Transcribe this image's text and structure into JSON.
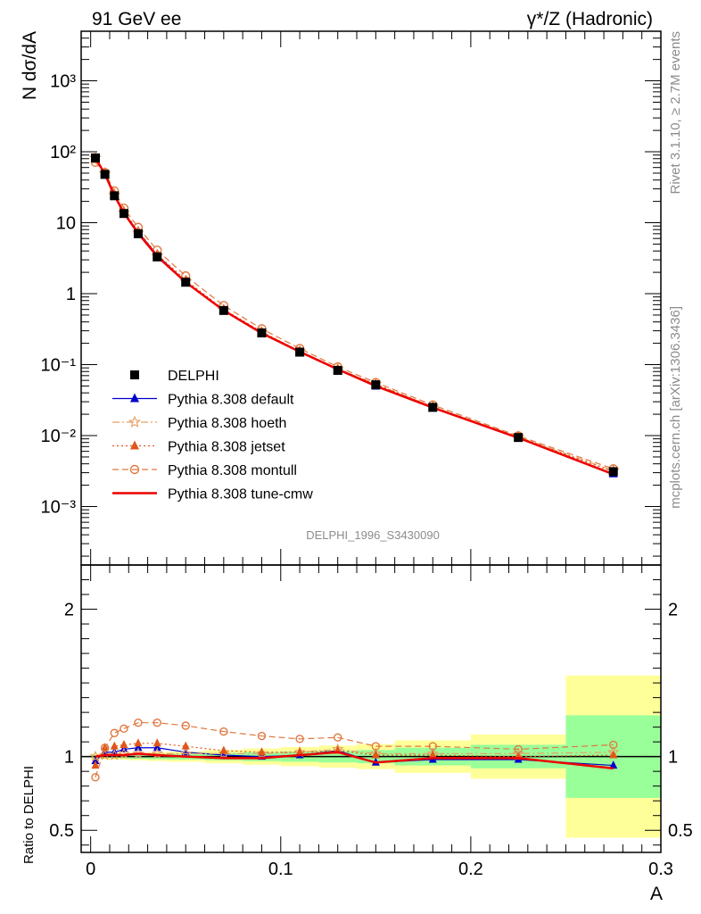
{
  "header": {
    "left": "91 GeV ee",
    "right": "γ*/Z (Hadronic)"
  },
  "side_text": {
    "rivet": "Rivet 3.1.10, ≥ 2.7M events",
    "mcplots": "mcplots.cern.ch [arXiv:1306.3436]"
  },
  "watermark": "DELPHI_1996_S3430090",
  "legend": [
    {
      "label": "DELPHI",
      "color": "#000000",
      "marker": "square",
      "line": "none"
    },
    {
      "label": "Pythia 8.308 default",
      "color": "#0000cc",
      "marker": "triangle",
      "line": "solid"
    },
    {
      "label": "Pythia 8.308 hoeth",
      "color": "#e6a066",
      "marker": "star-open",
      "line": "dashdot"
    },
    {
      "label": "Pythia 8.308 jetset",
      "color": "#e0561a",
      "marker": "triangle",
      "line": "dotted"
    },
    {
      "label": "Pythia 8.308 montull",
      "color": "#e07840",
      "marker": "circle-open",
      "line": "dashed"
    },
    {
      "label": "Pythia 8.308 tune-cmw",
      "color": "#ee0000",
      "marker": "none",
      "line": "solid"
    }
  ],
  "chart_data": [
    {
      "type": "line",
      "panel": "main",
      "ylabel": "N dσ/dA",
      "yscale": "log",
      "ylim": [
        0.00015,
        5000
      ],
      "xlim": [
        -0.005,
        0.3
      ],
      "y_ticks": [
        "10⁻³",
        "10⁻²",
        "10⁻¹",
        "1",
        "10",
        "10²",
        "10³"
      ],
      "x": [
        0.0025,
        0.0075,
        0.0125,
        0.0175,
        0.025,
        0.035,
        0.05,
        0.07,
        0.09,
        0.11,
        0.13,
        0.15,
        0.18,
        0.225,
        0.275
      ],
      "data": {
        "name": "DELPHI",
        "values": [
          82,
          48,
          24,
          13.5,
          7.0,
          3.3,
          1.45,
          0.58,
          0.28,
          0.15,
          0.083,
          0.052,
          0.025,
          0.0094,
          0.0031
        ]
      },
      "series": [
        {
          "name": "Pythia 8.308 default",
          "values": [
            80,
            50,
            25,
            14.0,
            7.4,
            3.5,
            1.47,
            0.58,
            0.28,
            0.152,
            0.086,
            0.05,
            0.0245,
            0.0092,
            0.0029
          ]
        },
        {
          "name": "Pythia 8.308 hoeth",
          "values": [
            82,
            49,
            24.5,
            13.8,
            7.2,
            3.4,
            1.48,
            0.59,
            0.285,
            0.155,
            0.087,
            0.053,
            0.0255,
            0.0096,
            0.0032
          ]
        },
        {
          "name": "Pythia 8.308 jetset",
          "values": [
            78,
            51,
            25.5,
            14.5,
            7.6,
            3.6,
            1.55,
            0.6,
            0.29,
            0.155,
            0.086,
            0.053,
            0.0255,
            0.0095,
            0.0031
          ]
        },
        {
          "name": "Pythia 8.308 montull",
          "values": [
            71,
            51,
            28,
            16.0,
            8.6,
            4.1,
            1.78,
            0.68,
            0.32,
            0.169,
            0.093,
            0.056,
            0.027,
            0.0099,
            0.0034
          ]
        },
        {
          "name": "Pythia 8.308 tune-cmw",
          "values": [
            82,
            48.5,
            24.2,
            13.7,
            7.1,
            3.35,
            1.45,
            0.58,
            0.278,
            0.152,
            0.086,
            0.05,
            0.0248,
            0.0093,
            0.00285
          ]
        }
      ]
    },
    {
      "type": "line",
      "panel": "ratio",
      "ylabel": "Ratio to DELPHI",
      "xlabel": "A",
      "ylim": [
        0.35,
        2.3
      ],
      "xlim": [
        -0.005,
        0.3
      ],
      "y_ticks": [
        "0.5",
        "1",
        "2"
      ],
      "x_ticks": [
        "0",
        "0.1",
        "0.2",
        "0.3"
      ],
      "x": [
        0.0025,
        0.0075,
        0.0125,
        0.0175,
        0.025,
        0.035,
        0.05,
        0.07,
        0.09,
        0.11,
        0.13,
        0.15,
        0.18,
        0.225,
        0.275
      ],
      "bins": [
        [
          0,
          0.005
        ],
        [
          0.005,
          0.01
        ],
        [
          0.01,
          0.015
        ],
        [
          0.015,
          0.02
        ],
        [
          0.02,
          0.03
        ],
        [
          0.03,
          0.04
        ],
        [
          0.04,
          0.06
        ],
        [
          0.06,
          0.08
        ],
        [
          0.08,
          0.1
        ],
        [
          0.1,
          0.12
        ],
        [
          0.12,
          0.14
        ],
        [
          0.14,
          0.16
        ],
        [
          0.16,
          0.2
        ],
        [
          0.2,
          0.25
        ],
        [
          0.25,
          0.3
        ]
      ],
      "band_stat": [
        0.01,
        0.01,
        0.01,
        0.012,
        0.015,
        0.018,
        0.02,
        0.025,
        0.03,
        0.035,
        0.04,
        0.045,
        0.06,
        0.08,
        0.28
      ],
      "band_total": [
        0.02,
        0.02,
        0.02,
        0.022,
        0.025,
        0.03,
        0.035,
        0.045,
        0.055,
        0.065,
        0.075,
        0.085,
        0.11,
        0.15,
        0.55
      ],
      "series": [
        {
          "name": "Pythia 8.308 default",
          "values": [
            0.97,
            1.03,
            1.03,
            1.05,
            1.06,
            1.06,
            1.03,
            1.01,
            1.0,
            1.01,
            1.04,
            0.96,
            0.98,
            0.98,
            0.94
          ]
        },
        {
          "name": "Pythia 8.308 hoeth",
          "values": [
            1.0,
            1.01,
            1.01,
            1.02,
            1.02,
            1.02,
            1.02,
            1.02,
            1.02,
            1.03,
            1.05,
            1.02,
            1.02,
            1.02,
            1.03
          ]
        },
        {
          "name": "Pythia 8.308 jetset",
          "values": [
            0.94,
            1.06,
            1.07,
            1.08,
            1.09,
            1.09,
            1.07,
            1.04,
            1.03,
            1.03,
            1.04,
            1.01,
            1.01,
            1.0,
            1.01
          ]
        },
        {
          "name": "Pythia 8.308 montull",
          "values": [
            0.86,
            1.06,
            1.16,
            1.19,
            1.23,
            1.23,
            1.21,
            1.17,
            1.14,
            1.12,
            1.13,
            1.07,
            1.07,
            1.05,
            1.08
          ]
        },
        {
          "name": "Pythia 8.308 tune-cmw",
          "values": [
            1.0,
            1.01,
            1.01,
            1.01,
            1.02,
            1.01,
            1.0,
            0.99,
            0.99,
            1.01,
            1.03,
            0.96,
            0.99,
            0.99,
            0.92
          ]
        }
      ]
    }
  ]
}
